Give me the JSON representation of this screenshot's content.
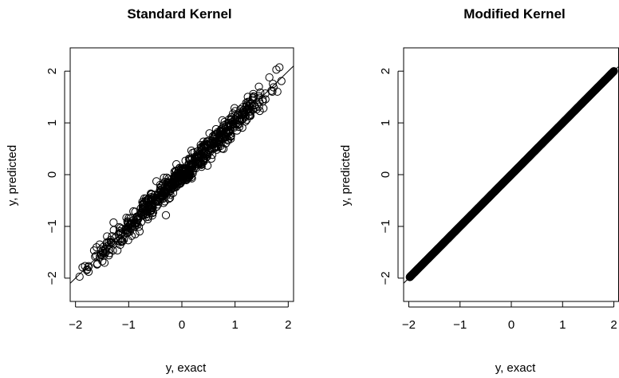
{
  "chart_data": [
    {
      "type": "scatter",
      "title": "Standard Kernel",
      "xlabel": "y, exact",
      "ylabel": "y, predicted",
      "xlim": [
        -2.1,
        2.1
      ],
      "ylim": [
        -2.45,
        2.45
      ],
      "xticks": [
        "−2",
        "−1",
        "0",
        "1",
        "2"
      ],
      "yticks": [
        "−2",
        "−1",
        "0",
        "1",
        "2"
      ],
      "xtick_values": [
        -2,
        -1,
        0,
        1,
        2
      ],
      "ytick_values": [
        -2,
        -1,
        0,
        1,
        2
      ],
      "reference_line": {
        "slope": 1,
        "intercept": 0
      },
      "marker": "open-circle",
      "noise_sd": 0.12,
      "point_count": 700,
      "x_range": [
        -1.95,
        1.98
      ],
      "grid": false
    },
    {
      "type": "scatter",
      "title": "Modified Kernel",
      "xlabel": "y, exact",
      "ylabel": "y, predicted",
      "xlim": [
        -2.1,
        2.1
      ],
      "ylim": [
        -2.45,
        2.45
      ],
      "xticks": [
        "−2",
        "−1",
        "0",
        "1",
        "2"
      ],
      "yticks": [
        "−2",
        "−1",
        "0",
        "1",
        "2"
      ],
      "xtick_values": [
        -2,
        -1,
        0,
        1,
        2
      ],
      "ytick_values": [
        -2,
        -1,
        0,
        1,
        2
      ],
      "reference_line": {
        "slope": 1,
        "intercept": 0
      },
      "marker": "open-circle",
      "noise_sd": 0.0,
      "point_count": 700,
      "x_range": [
        -1.98,
        2.0
      ],
      "grid": false
    }
  ]
}
